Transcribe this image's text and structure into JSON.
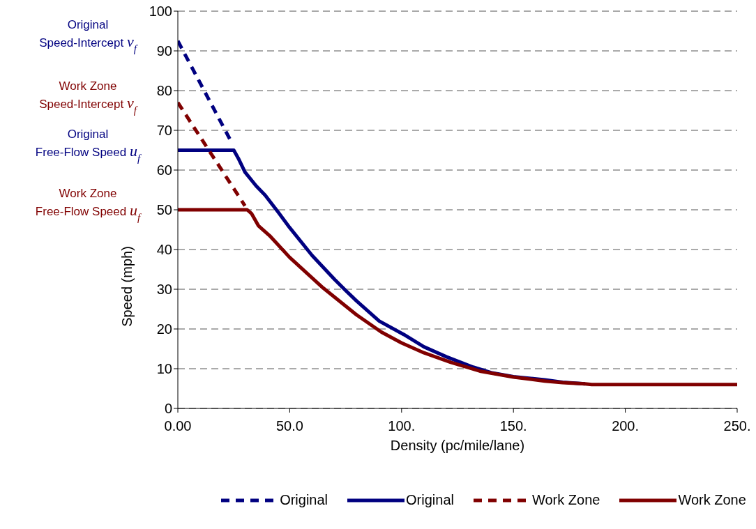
{
  "chart_data": {
    "type": "line",
    "xlabel": "Density (pc/mile/lane)",
    "ylabel": "Speed (mph)",
    "xlim": [
      0,
      250
    ],
    "xticks": [
      {
        "value": 0,
        "label": "0.00"
      },
      {
        "value": 50,
        "label": "50.0"
      },
      {
        "value": 100,
        "label": "100."
      },
      {
        "value": 150,
        "label": "150."
      },
      {
        "value": 200,
        "label": "200."
      },
      {
        "value": 250,
        "label": "250."
      }
    ],
    "ylim": [
      0,
      100
    ],
    "yticks": [
      0,
      10,
      20,
      30,
      40,
      50,
      60,
      70,
      80,
      90,
      100
    ],
    "grid": "y",
    "legend": "bottom",
    "marker": "none",
    "series": [
      {
        "name": "Original",
        "color": "#000080",
        "line_style": "dashed",
        "x": [
          0,
          24
        ],
        "values": [
          92.5,
          67
        ]
      },
      {
        "name": "Original",
        "color": "#000080",
        "line_style": "solid",
        "x": [
          0,
          25,
          27,
          30,
          35,
          39,
          45,
          50,
          60,
          70,
          75,
          80,
          90,
          101,
          110,
          120,
          132,
          140,
          150,
          164,
          172,
          182
        ],
        "values": [
          65,
          65,
          63,
          59.5,
          56,
          53.7,
          49.3,
          45.5,
          38.5,
          32.5,
          29.7,
          27,
          22,
          18.6,
          15.5,
          13,
          10.4,
          9,
          8,
          7.2,
          6.6,
          6.2
        ]
      },
      {
        "name": "Work Zone",
        "color": "#800000",
        "line_style": "dashed",
        "x": [
          0,
          30
        ],
        "values": [
          77,
          51
        ]
      },
      {
        "name": "Work Zone",
        "color": "#800000",
        "line_style": "solid",
        "x": [
          0,
          31,
          33,
          36,
          41,
          50,
          65,
          80,
          91,
          100,
          110,
          122,
          135,
          150,
          164,
          172,
          182,
          185,
          250
        ],
        "values": [
          50,
          50,
          49,
          46,
          43.5,
          38,
          30.3,
          23.5,
          19.2,
          16.5,
          14,
          11.6,
          9.4,
          7.9,
          6.9,
          6.5,
          6.2,
          6,
          6
        ]
      }
    ],
    "annotations": [
      "Original\nSpeed-Intercept  v$_{f}$",
      "Work Zone\nSpeed-Intercept  v$_{f}$",
      "Original\nFree-Flow Speed u$_{f}$",
      "Work Zone\nFree-Flow Speed u$_{f}$"
    ]
  }
}
